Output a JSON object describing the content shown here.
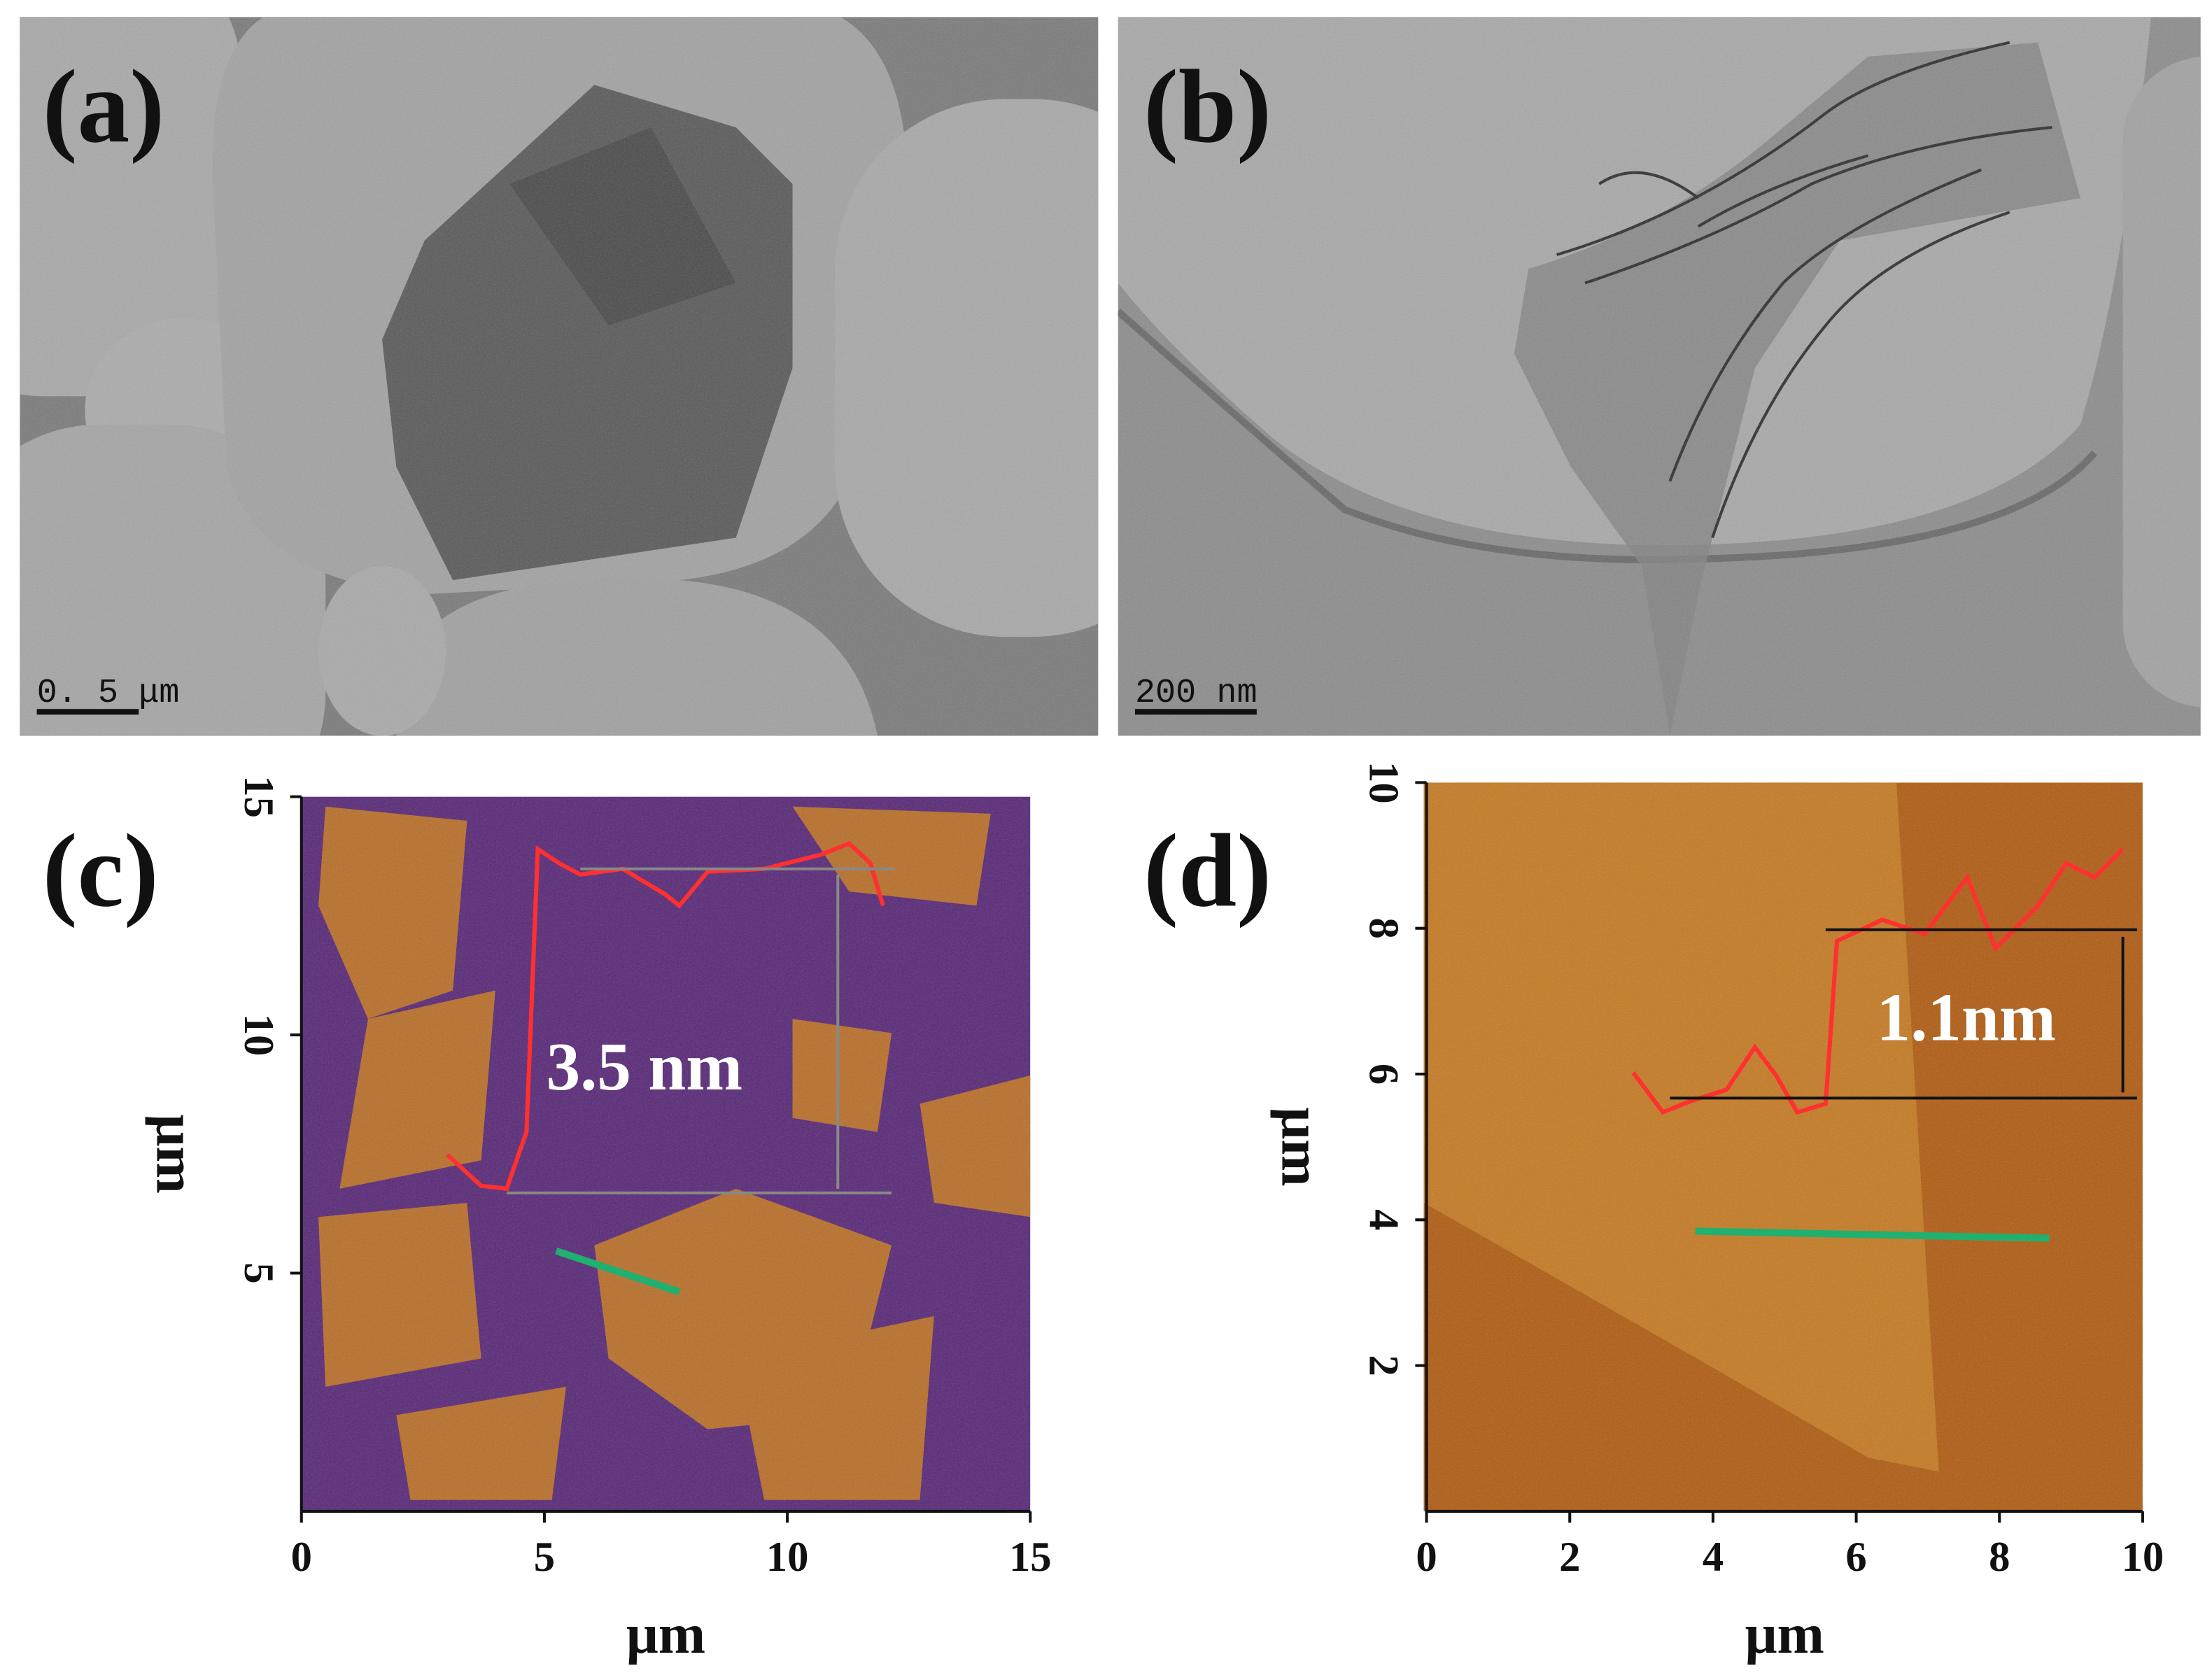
{
  "panels": [
    {
      "label": "(a)",
      "scale_bar": "0. 5 μm"
    },
    {
      "label": "(b)",
      "scale_bar": "200 nm"
    },
    {
      "label": "(c)",
      "annotation": "3.5 nm",
      "xlabel": "μm",
      "ylabel": "μm",
      "xlim": [
        0,
        15
      ],
      "ylim": [
        0,
        15
      ],
      "xticks": [
        0,
        5,
        10,
        15
      ],
      "yticks": [
        5,
        10,
        15
      ]
    },
    {
      "label": "(d)",
      "annotation": "1.1nm",
      "xlabel": "μm",
      "ylabel": "μm",
      "xlim": [
        0,
        10
      ],
      "ylim": [
        0,
        10
      ],
      "xticks": [
        0,
        2,
        4,
        6,
        8,
        10
      ],
      "yticks": [
        2,
        4,
        6,
        8,
        10
      ]
    }
  ]
}
